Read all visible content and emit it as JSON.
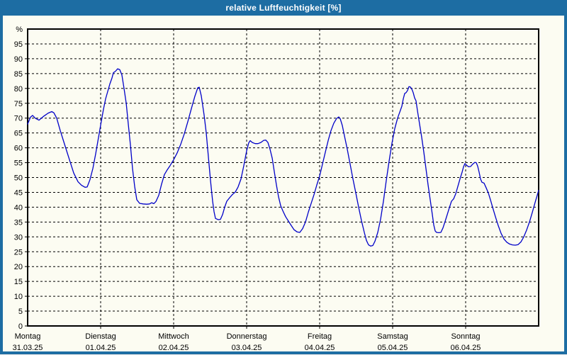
{
  "window": {
    "title": "relative Luftfeuchtigkeit [%]"
  },
  "colors": {
    "titlebar": "#1d6da3",
    "window_frame": "#1d6da3",
    "content_background": "#fcfcf2",
    "grid": "#000000",
    "line": "#0000c8",
    "text": "#000000"
  },
  "chart_data": {
    "type": "line",
    "title": "relative Luftfeuchtigkeit [%]",
    "ylabel": "%",
    "ylim": [
      0,
      100
    ],
    "y_tick_labels": [
      0,
      5,
      10,
      15,
      20,
      25,
      30,
      35,
      40,
      45,
      50,
      55,
      60,
      65,
      70,
      75,
      80,
      85,
      90,
      95
    ],
    "x_range_days": [
      0,
      7
    ],
    "grid": "dashed",
    "legend": "none",
    "x_days": [
      {
        "name": "Montag",
        "date": "31.03.25"
      },
      {
        "name": "Dienstag",
        "date": "01.04.25"
      },
      {
        "name": "Mittwoch",
        "date": "02.04.25"
      },
      {
        "name": "Donnerstag",
        "date": "03.04.25"
      },
      {
        "name": "Freitag",
        "date": "04.04.25"
      },
      {
        "name": "Samstag",
        "date": "05.04.25"
      },
      {
        "name": "Sonntag",
        "date": "06.04.25"
      }
    ],
    "series": [
      {
        "name": "relative Luftfeuchtigkeit",
        "unit": "%",
        "color": "#0000c8",
        "points": [
          [
            0.0,
            68.0
          ],
          [
            0.039,
            70.3
          ],
          [
            0.068,
            70.9
          ],
          [
            0.107,
            69.9
          ],
          [
            0.155,
            69.3
          ],
          [
            0.223,
            70.7
          ],
          [
            0.282,
            71.7
          ],
          [
            0.33,
            72.2
          ],
          [
            0.359,
            71.8
          ],
          [
            0.398,
            70.0
          ],
          [
            0.447,
            65.8
          ],
          [
            0.515,
            60.5
          ],
          [
            0.573,
            56.0
          ],
          [
            0.631,
            51.5
          ],
          [
            0.689,
            48.6
          ],
          [
            0.738,
            47.4
          ],
          [
            0.786,
            46.7
          ],
          [
            0.816,
            46.8
          ],
          [
            0.854,
            49.3
          ],
          [
            0.893,
            53.0
          ],
          [
            0.932,
            58.0
          ],
          [
            0.971,
            63.5
          ],
          [
            1.01,
            69.0
          ],
          [
            1.039,
            73.0
          ],
          [
            1.068,
            76.5
          ],
          [
            1.097,
            79.0
          ],
          [
            1.126,
            81.5
          ],
          [
            1.155,
            83.5
          ],
          [
            1.175,
            85.3
          ],
          [
            1.204,
            85.8
          ],
          [
            1.233,
            86.6
          ],
          [
            1.262,
            86.3
          ],
          [
            1.291,
            84.5
          ],
          [
            1.32,
            80.0
          ],
          [
            1.35,
            75.0
          ],
          [
            1.379,
            68.0
          ],
          [
            1.408,
            61.0
          ],
          [
            1.437,
            53.0
          ],
          [
            1.466,
            47.0
          ],
          [
            1.495,
            42.5
          ],
          [
            1.534,
            41.3
          ],
          [
            1.583,
            41.1
          ],
          [
            1.631,
            41.0
          ],
          [
            1.67,
            41.1
          ],
          [
            1.699,
            41.5
          ],
          [
            1.728,
            41.2
          ],
          [
            1.757,
            41.9
          ],
          [
            1.796,
            44.0
          ],
          [
            1.835,
            47.8
          ],
          [
            1.874,
            51.0
          ],
          [
            1.913,
            52.6
          ],
          [
            1.951,
            54.0
          ],
          [
            2.0,
            56.0
          ],
          [
            2.049,
            58.3
          ],
          [
            2.097,
            61.2
          ],
          [
            2.146,
            64.7
          ],
          [
            2.194,
            68.8
          ],
          [
            2.243,
            73.2
          ],
          [
            2.291,
            77.4
          ],
          [
            2.33,
            80.2
          ],
          [
            2.35,
            80.4
          ],
          [
            2.379,
            77.5
          ],
          [
            2.417,
            71.0
          ],
          [
            2.447,
            65.0
          ],
          [
            2.476,
            57.0
          ],
          [
            2.505,
            49.0
          ],
          [
            2.534,
            42.0
          ],
          [
            2.553,
            38.5
          ],
          [
            2.573,
            36.2
          ],
          [
            2.612,
            35.8
          ],
          [
            2.641,
            35.9
          ],
          [
            2.67,
            37.5
          ],
          [
            2.699,
            40.0
          ],
          [
            2.728,
            42.0
          ],
          [
            2.767,
            43.2
          ],
          [
            2.806,
            44.3
          ],
          [
            2.845,
            45.1
          ],
          [
            2.883,
            46.8
          ],
          [
            2.922,
            49.5
          ],
          [
            2.961,
            54.0
          ],
          [
            3.0,
            59.0
          ],
          [
            3.029,
            61.7
          ],
          [
            3.049,
            62.4
          ],
          [
            3.078,
            61.8
          ],
          [
            3.117,
            61.4
          ],
          [
            3.155,
            61.4
          ],
          [
            3.194,
            61.8
          ],
          [
            3.233,
            62.5
          ],
          [
            3.262,
            62.6
          ],
          [
            3.291,
            61.8
          ],
          [
            3.32,
            59.5
          ],
          [
            3.35,
            56.5
          ],
          [
            3.379,
            52.0
          ],
          [
            3.408,
            47.5
          ],
          [
            3.437,
            43.5
          ],
          [
            3.466,
            40.5
          ],
          [
            3.495,
            38.8
          ],
          [
            3.534,
            36.8
          ],
          [
            3.573,
            35.3
          ],
          [
            3.612,
            33.8
          ],
          [
            3.65,
            32.4
          ],
          [
            3.689,
            31.7
          ],
          [
            3.728,
            31.5
          ],
          [
            3.767,
            32.8
          ],
          [
            3.806,
            35.0
          ],
          [
            3.845,
            38.3
          ],
          [
            3.883,
            41.2
          ],
          [
            3.922,
            44.2
          ],
          [
            3.961,
            47.5
          ],
          [
            4.0,
            50.5
          ],
          [
            4.039,
            54.5
          ],
          [
            4.078,
            58.5
          ],
          [
            4.117,
            62.5
          ],
          [
            4.155,
            65.8
          ],
          [
            4.194,
            68.3
          ],
          [
            4.233,
            69.9
          ],
          [
            4.262,
            70.4
          ],
          [
            4.282,
            69.8
          ],
          [
            4.311,
            67.5
          ],
          [
            4.34,
            64.0
          ],
          [
            4.379,
            59.5
          ],
          [
            4.417,
            54.5
          ],
          [
            4.456,
            49.5
          ],
          [
            4.495,
            44.8
          ],
          [
            4.534,
            40.0
          ],
          [
            4.573,
            35.5
          ],
          [
            4.612,
            31.5
          ],
          [
            4.641,
            28.8
          ],
          [
            4.67,
            27.3
          ],
          [
            4.699,
            26.9
          ],
          [
            4.728,
            27.1
          ],
          [
            4.757,
            28.5
          ],
          [
            4.796,
            31.5
          ],
          [
            4.835,
            36.0
          ],
          [
            4.874,
            42.0
          ],
          [
            4.913,
            49.0
          ],
          [
            4.951,
            55.5
          ],
          [
            4.99,
            61.5
          ],
          [
            5.029,
            66.5
          ],
          [
            5.068,
            70.0
          ],
          [
            5.097,
            72.0
          ],
          [
            5.126,
            74.0
          ],
          [
            5.146,
            76.5
          ],
          [
            5.165,
            78.3
          ],
          [
            5.184,
            78.6
          ],
          [
            5.204,
            79.3
          ],
          [
            5.223,
            80.6
          ],
          [
            5.243,
            80.5
          ],
          [
            5.262,
            79.8
          ],
          [
            5.282,
            78.6
          ],
          [
            5.301,
            76.8
          ],
          [
            5.32,
            75.8
          ],
          [
            5.34,
            72.5
          ],
          [
            5.369,
            68.0
          ],
          [
            5.398,
            63.5
          ],
          [
            5.427,
            58.5
          ],
          [
            5.456,
            53.0
          ],
          [
            5.485,
            47.5
          ],
          [
            5.515,
            42.5
          ],
          [
            5.544,
            37.5
          ],
          [
            5.563,
            34.0
          ],
          [
            5.583,
            32.0
          ],
          [
            5.602,
            31.5
          ],
          [
            5.631,
            31.4
          ],
          [
            5.66,
            31.5
          ],
          [
            5.689,
            33.0
          ],
          [
            5.718,
            35.2
          ],
          [
            5.748,
            37.5
          ],
          [
            5.777,
            39.8
          ],
          [
            5.806,
            42.0
          ],
          [
            5.835,
            42.8
          ],
          [
            5.864,
            44.5
          ],
          [
            5.893,
            47.0
          ],
          [
            5.922,
            49.5
          ],
          [
            5.951,
            51.8
          ],
          [
            5.971,
            53.6
          ],
          [
            5.99,
            54.7
          ],
          [
            6.01,
            54.2
          ],
          [
            6.039,
            53.6
          ],
          [
            6.068,
            53.7
          ],
          [
            6.097,
            54.5
          ],
          [
            6.126,
            55.1
          ],
          [
            6.146,
            55.0
          ],
          [
            6.165,
            53.8
          ],
          [
            6.184,
            51.8
          ],
          [
            6.204,
            49.5
          ],
          [
            6.223,
            48.4
          ],
          [
            6.252,
            48.1
          ],
          [
            6.282,
            46.5
          ],
          [
            6.311,
            44.8
          ],
          [
            6.34,
            42.5
          ],
          [
            6.369,
            40.0
          ],
          [
            6.408,
            36.8
          ],
          [
            6.447,
            33.8
          ],
          [
            6.485,
            31.2
          ],
          [
            6.524,
            29.3
          ],
          [
            6.563,
            28.2
          ],
          [
            6.602,
            27.6
          ],
          [
            6.641,
            27.3
          ],
          [
            6.68,
            27.2
          ],
          [
            6.718,
            27.4
          ],
          [
            6.757,
            28.3
          ],
          [
            6.796,
            30.0
          ],
          [
            6.835,
            32.3
          ],
          [
            6.874,
            35.0
          ],
          [
            6.913,
            38.2
          ],
          [
            6.951,
            41.6
          ],
          [
            6.981,
            44.0
          ],
          [
            7.0,
            45.7
          ]
        ]
      }
    ]
  }
}
